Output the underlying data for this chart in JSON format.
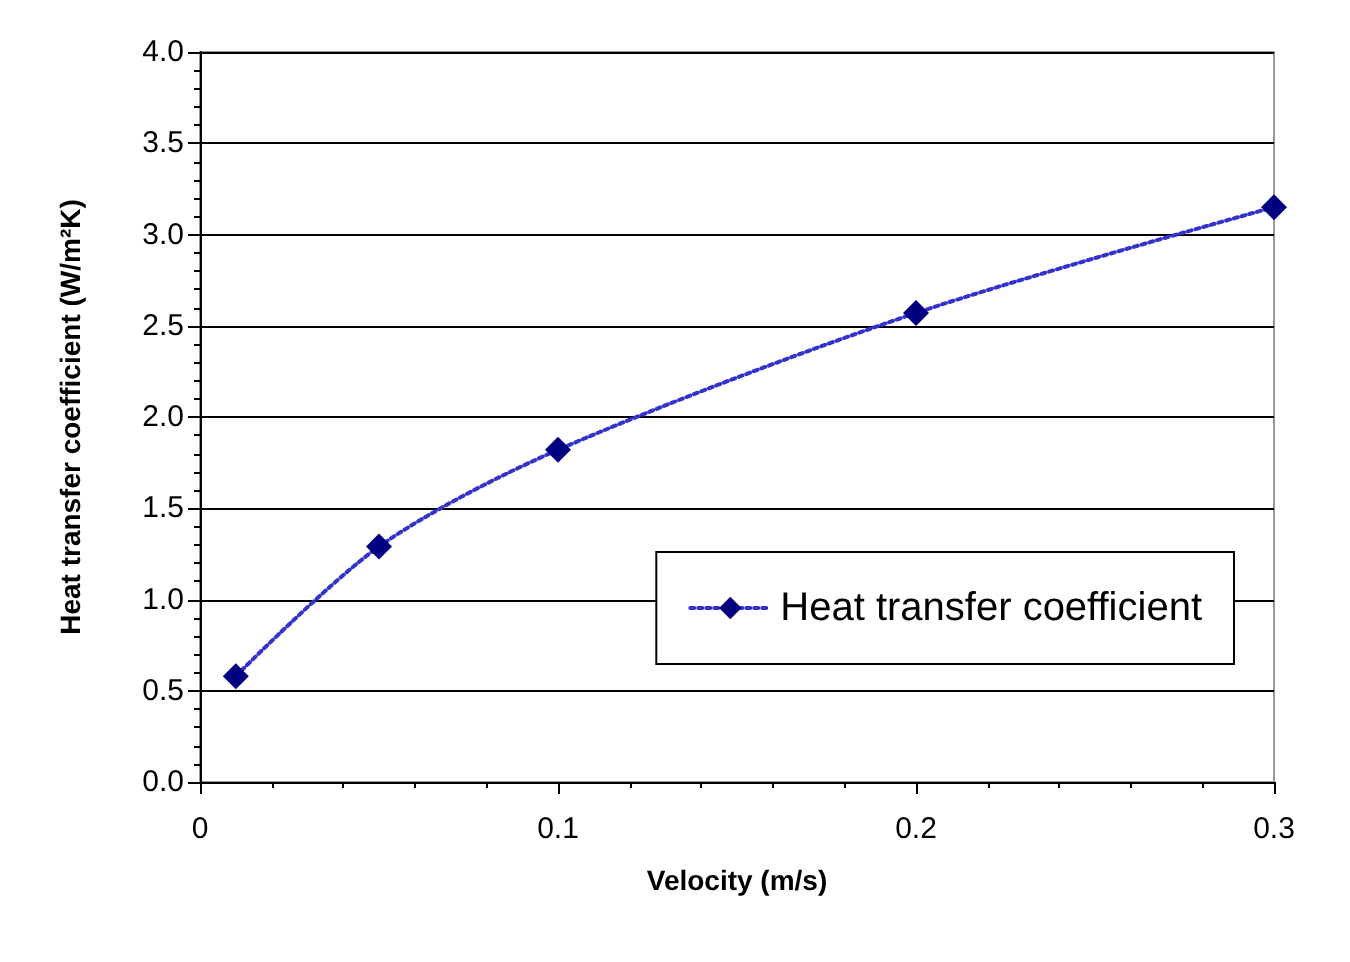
{
  "chart_data": {
    "type": "line",
    "xlabel": "Velocity (m/s)",
    "ylabel": "Heat transfer coefficient (W/m²K)",
    "x": [
      0.01,
      0.05,
      0.1,
      0.2,
      0.3
    ],
    "series": [
      {
        "name": "Heat transfer coefficient",
        "color": "#000080",
        "values": [
          0.58,
          1.29,
          1.82,
          2.57,
          3.15
        ]
      }
    ],
    "xlim": [
      0,
      0.3
    ],
    "xticks": [
      0,
      0.1,
      0.2,
      0.3
    ],
    "ylim": [
      0,
      4
    ],
    "yticks": [
      {
        "value": 0,
        "label": "0.0"
      },
      0.5,
      {
        "value": 1,
        "label": "1.0"
      },
      1.5,
      {
        "value": 2,
        "label": "2.0"
      },
      2.5,
      {
        "value": 3,
        "label": "3.0"
      },
      3.5,
      {
        "value": 4,
        "label": "4.0"
      }
    ],
    "grid": "y",
    "legend": "right",
    "marker": "diamond",
    "line_style": "dotted"
  }
}
